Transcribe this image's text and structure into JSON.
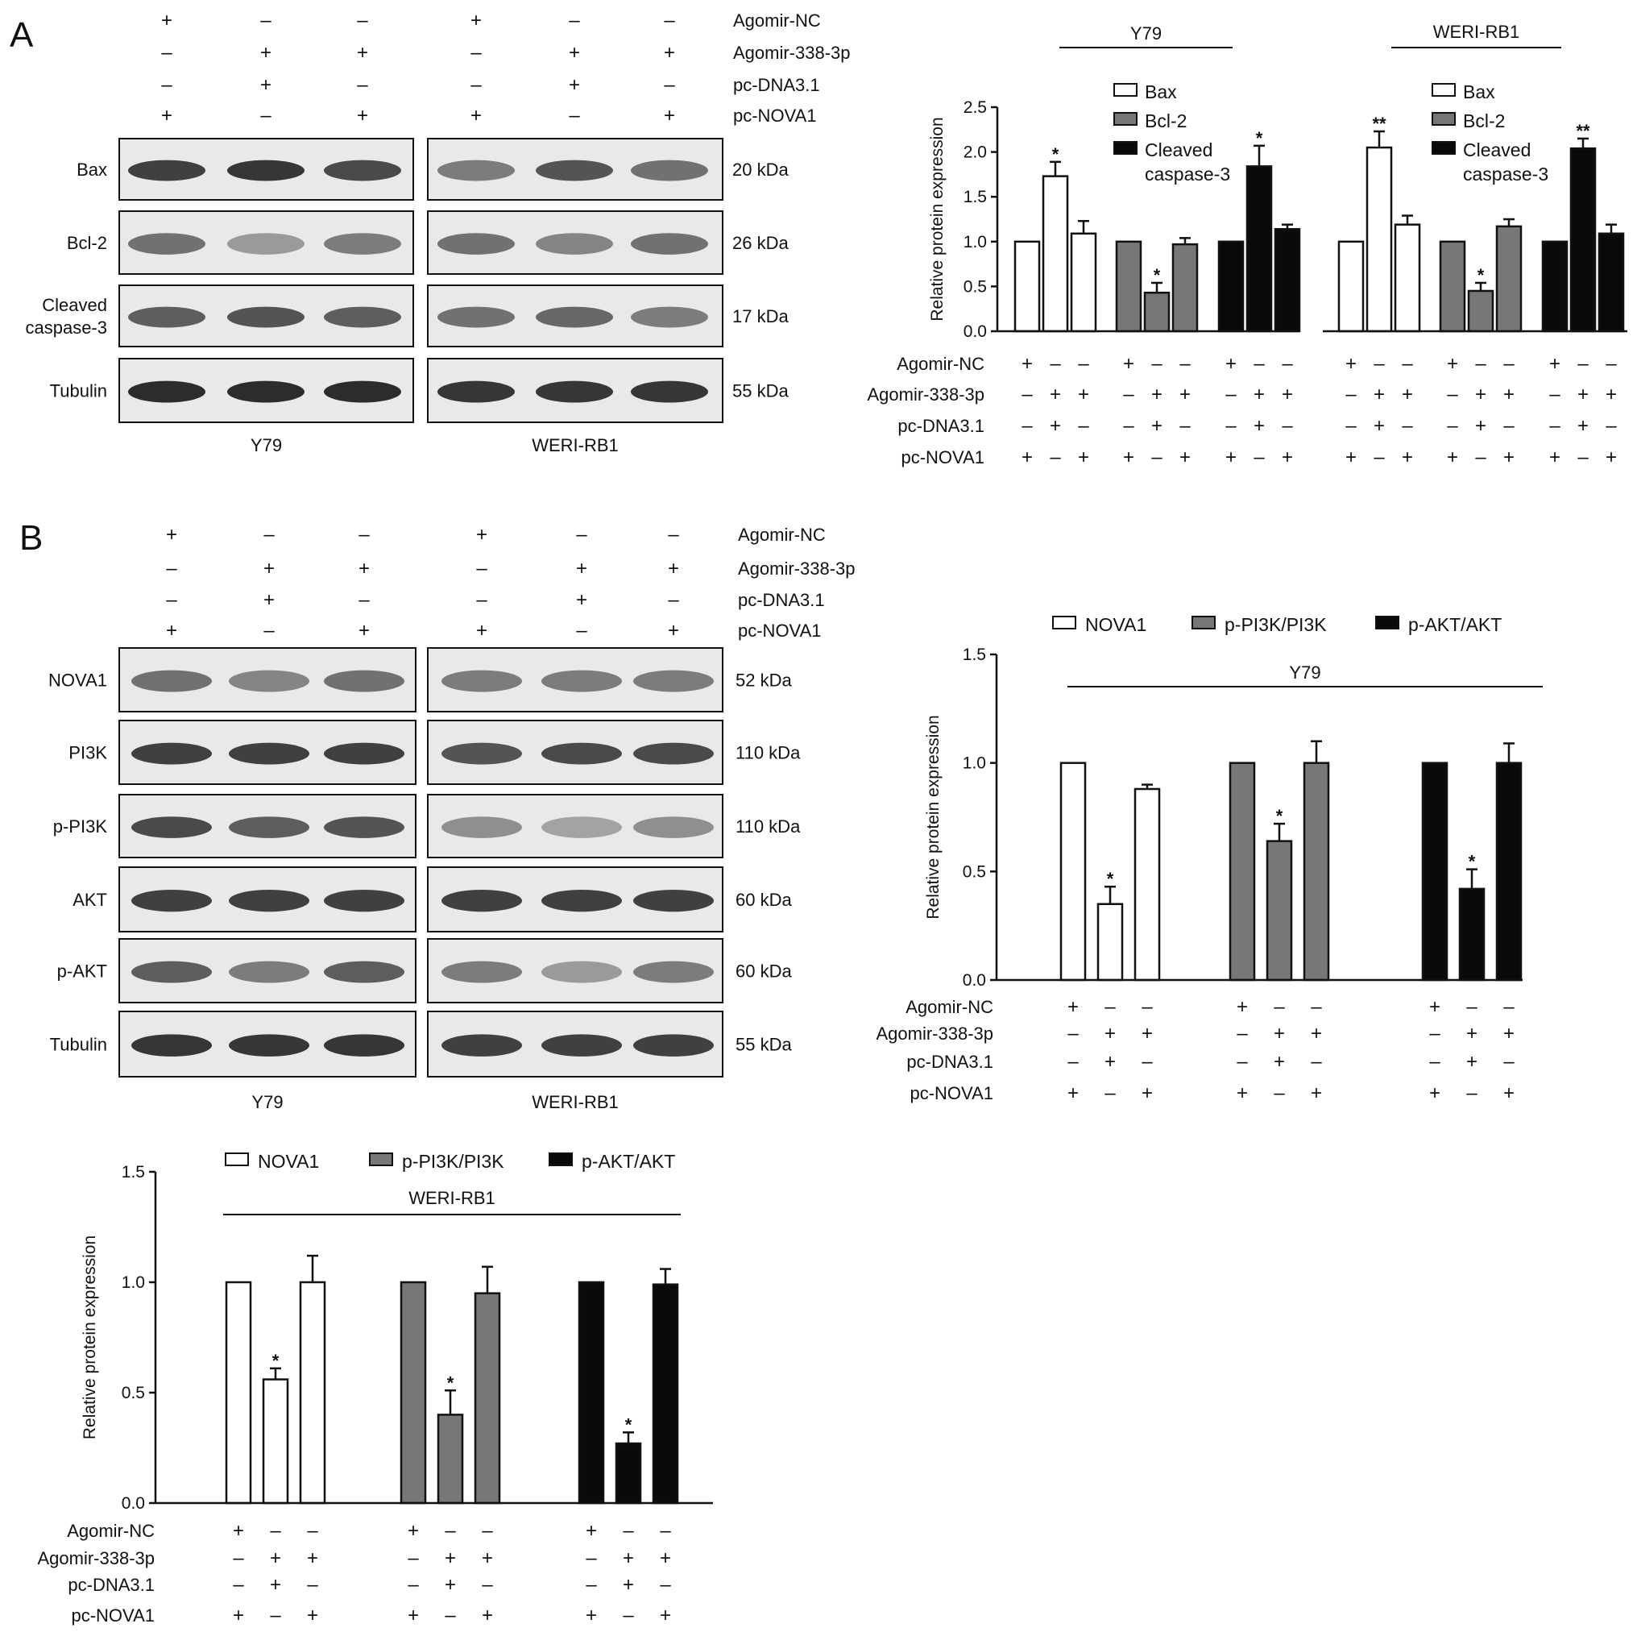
{
  "panel_labels": {
    "a": "A",
    "b": "B"
  },
  "conditions": [
    "Agomir-NC",
    "Agomir-338-3p",
    "pc-DNA3.1",
    "pc-NOVA1"
  ],
  "condition_signs": [
    [
      "+",
      "–",
      "–"
    ],
    [
      "–",
      "+",
      "+"
    ],
    [
      "–",
      "+",
      "–"
    ],
    [
      "+",
      "–",
      "+"
    ]
  ],
  "cell_lines": [
    "Y79",
    "WERI-RB1"
  ],
  "blot_a": {
    "rows": [
      {
        "protein": "Bax",
        "kda": "20 kDa"
      },
      {
        "protein": "Bcl-2",
        "kda": "26 kDa"
      },
      {
        "protein": "Cleaved\ncaspase-3",
        "kda": "17 kDa"
      },
      {
        "protein": "Tubulin",
        "kda": "55 kDa"
      }
    ]
  },
  "blot_b": {
    "rows": [
      {
        "protein": "NOVA1",
        "kda": "52 kDa"
      },
      {
        "protein": "PI3K",
        "kda": "110 kDa"
      },
      {
        "protein": "p-PI3K",
        "kda": "110 kDa"
      },
      {
        "protein": "AKT",
        "kda": "60 kDa"
      },
      {
        "protein": "p-AKT",
        "kda": "60 kDa"
      },
      {
        "protein": "Tubulin",
        "kda": "55 kDa"
      }
    ]
  },
  "colors": {
    "white": "#ffffff",
    "gray": "#777777",
    "black": "#0a0a0a",
    "stroke": "#111111"
  },
  "chart_data": [
    {
      "type": "bar",
      "panel": "A",
      "title": "Y79",
      "ylabel": "Relative protein expression",
      "ylim": [
        0,
        2.5
      ],
      "yticks": [
        "0.0",
        "0.5",
        "1.0",
        "1.5",
        "2.0",
        "2.5"
      ],
      "legend_position": "top-right",
      "series": [
        {
          "name": "Bax",
          "values": [
            1.0,
            1.73,
            1.09
          ],
          "errors": [
            0,
            0.16,
            0.14
          ],
          "stars": [
            "",
            "*",
            ""
          ],
          "color": "#ffffff"
        },
        {
          "name": "Bcl-2",
          "values": [
            1.0,
            0.43,
            0.97
          ],
          "errors": [
            0,
            0.11,
            0.07
          ],
          "stars": [
            "",
            "*",
            ""
          ],
          "color": "#777777"
        },
        {
          "name": "Cleaved caspase-3",
          "values": [
            1.0,
            1.84,
            1.14
          ],
          "errors": [
            0,
            0.23,
            0.05
          ],
          "stars": [
            "",
            "*",
            ""
          ],
          "color": "#0a0a0a"
        }
      ]
    },
    {
      "type": "bar",
      "panel": "A",
      "title": "WERI-RB1",
      "ylim": [
        0,
        2.5
      ],
      "legend_position": "top-right",
      "series": [
        {
          "name": "Bax",
          "values": [
            1.0,
            2.05,
            1.19
          ],
          "errors": [
            0,
            0.18,
            0.1
          ],
          "stars": [
            "",
            "**",
            ""
          ],
          "color": "#ffffff"
        },
        {
          "name": "Bcl-2",
          "values": [
            1.0,
            0.45,
            1.17
          ],
          "errors": [
            0,
            0.09,
            0.08
          ],
          "stars": [
            "",
            "*",
            ""
          ],
          "color": "#777777"
        },
        {
          "name": "Cleaved caspase-3",
          "values": [
            1.0,
            2.04,
            1.09
          ],
          "errors": [
            0,
            0.11,
            0.1
          ],
          "stars": [
            "",
            "**",
            ""
          ],
          "color": "#0a0a0a"
        }
      ]
    },
    {
      "type": "bar",
      "panel": "B",
      "title": "Y79",
      "ylabel": "Relative protein expression",
      "ylim": [
        0,
        1.5
      ],
      "yticks": [
        "0.0",
        "0.5",
        "1.0",
        "1.5"
      ],
      "legend_position": "top",
      "series": [
        {
          "name": "NOVA1",
          "values": [
            1.0,
            0.35,
            0.88
          ],
          "errors": [
            0,
            0.08,
            0.02
          ],
          "stars": [
            "",
            "*",
            ""
          ],
          "color": "#ffffff"
        },
        {
          "name": "p-PI3K/PI3K",
          "values": [
            1.0,
            0.64,
            1.0
          ],
          "errors": [
            0,
            0.08,
            0.1
          ],
          "stars": [
            "",
            "*",
            ""
          ],
          "color": "#777777"
        },
        {
          "name": "p-AKT/AKT",
          "values": [
            1.0,
            0.42,
            1.0
          ],
          "errors": [
            0,
            0.09,
            0.09
          ],
          "stars": [
            "",
            "*",
            ""
          ],
          "color": "#0a0a0a"
        }
      ]
    },
    {
      "type": "bar",
      "panel": "B",
      "title": "WERI-RB1",
      "ylabel": "Relative protein expression",
      "ylim": [
        0,
        1.5
      ],
      "yticks": [
        "0.0",
        "0.5",
        "1.0",
        "1.5"
      ],
      "legend_position": "top",
      "series": [
        {
          "name": "NOVA1",
          "values": [
            1.0,
            0.56,
            1.0
          ],
          "errors": [
            0,
            0.05,
            0.12
          ],
          "stars": [
            "",
            "*",
            ""
          ],
          "color": "#ffffff"
        },
        {
          "name": "p-PI3K/PI3K",
          "values": [
            1.0,
            0.4,
            0.95
          ],
          "errors": [
            0,
            0.11,
            0.12
          ],
          "stars": [
            "",
            "*",
            ""
          ],
          "color": "#777777"
        },
        {
          "name": "p-AKT/AKT",
          "values": [
            1.0,
            0.27,
            0.99
          ],
          "errors": [
            0,
            0.05,
            0.07
          ],
          "stars": [
            "",
            "*",
            ""
          ],
          "color": "#0a0a0a"
        }
      ]
    }
  ]
}
